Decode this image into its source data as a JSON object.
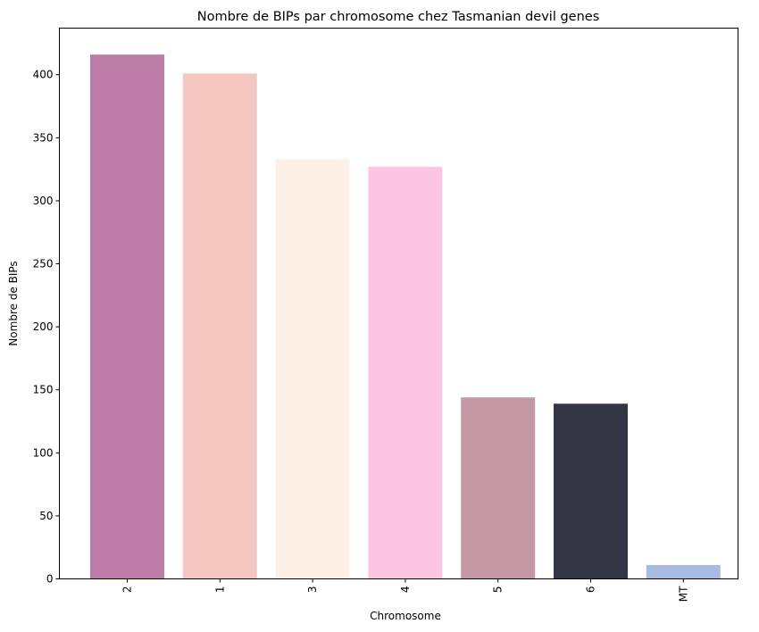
{
  "chart_data": {
    "type": "bar",
    "title": "Nombre de BIPs par chromosome chez Tasmanian devil genes",
    "xlabel": "Chromosome",
    "ylabel": "Nombre de BIPs",
    "categories": [
      "2",
      "1",
      "3",
      "4",
      "5",
      "6",
      "MT"
    ],
    "values": [
      416,
      401,
      333,
      327,
      144,
      139,
      11
    ],
    "colors": [
      "#bd7ba7",
      "#f4c7c1",
      "#fdf0e6",
      "#fcc6e3",
      "#c499a5",
      "#333645",
      "#a8bbe0"
    ],
    "ylim": [
      0,
      437
    ],
    "yticks": [
      0,
      50,
      100,
      150,
      200,
      250,
      300,
      350,
      400
    ],
    "grid": false,
    "legend": "none"
  }
}
